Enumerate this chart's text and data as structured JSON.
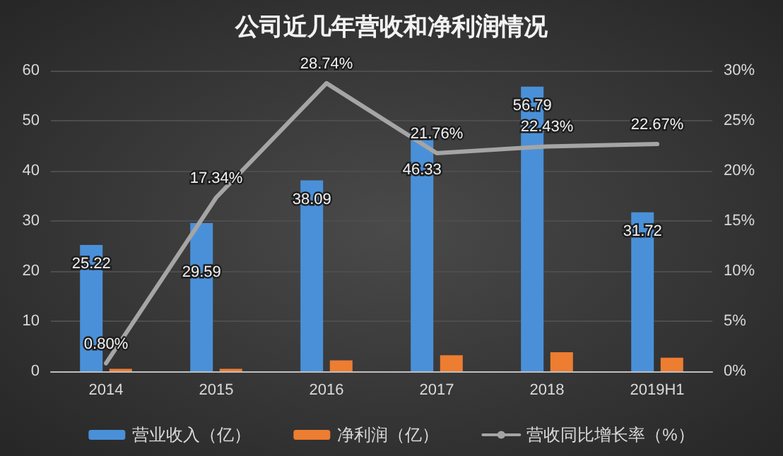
{
  "chart_data": {
    "type": "bar",
    "title": "公司近几年营收和净利润情况",
    "categories": [
      "2014",
      "2015",
      "2016",
      "2017",
      "2018",
      "2019H1"
    ],
    "series": [
      {
        "name": "营业收入（亿）",
        "color": "#4a90d9",
        "values": [
          25.22,
          29.59,
          38.09,
          46.33,
          56.79,
          31.72
        ],
        "value_labels": [
          "25.22",
          "29.59",
          "38.09",
          "46.33",
          "56.79",
          "31.72"
        ]
      },
      {
        "name": "净利润（亿）",
        "color": "#ed7d31",
        "values": [
          0.5,
          0.5,
          2.2,
          3.2,
          3.8,
          2.7
        ]
      },
      {
        "name": "营收同比增长率（%）",
        "type": "line",
        "axis": "y2",
        "color": "#a5a5a5",
        "values": [
          0.8,
          17.34,
          28.74,
          21.76,
          22.43,
          22.67
        ],
        "value_labels": [
          "0.80%",
          "17.34%",
          "28.74%",
          "21.76%",
          "22.43%",
          "22.67%"
        ]
      }
    ],
    "ylim": [
      0,
      60
    ],
    "yticks": [
      0,
      10,
      20,
      30,
      40,
      50,
      60
    ],
    "y2lim": [
      0,
      30
    ],
    "y2ticks": [
      {
        "value": 0,
        "label": "0%"
      },
      {
        "value": 5,
        "label": "5%"
      },
      {
        "value": 10,
        "label": "10%"
      },
      {
        "value": 15,
        "label": "15%"
      },
      {
        "value": 20,
        "label": "20%"
      },
      {
        "value": 25,
        "label": "25%"
      },
      {
        "value": 30,
        "label": "30%"
      }
    ],
    "grid": "y",
    "legend": "bottom",
    "marker": "none",
    "line_style": "solid"
  }
}
